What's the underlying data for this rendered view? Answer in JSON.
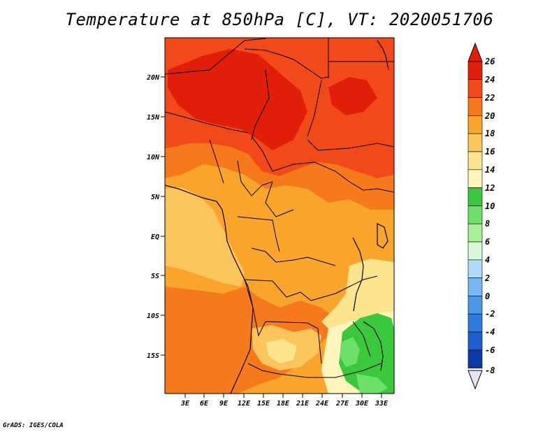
{
  "title": "Temperature at 850hPa [C], VT: 2020051706",
  "credit": "GrADS: IGES/COLA",
  "colors": {
    "c26": "#e01e0a",
    "c24": "#f2491a",
    "c22": "#f6791c",
    "c20": "#f9a42a",
    "c18": "#fbc55c",
    "c16": "#fde48e",
    "c14": "#fff6bd",
    "c12": "#3cc83c",
    "c10": "#6ce06a",
    "c8": "#a8f098",
    "c6": "#d8f8d8",
    "c4": "#b0daf8",
    "c2": "#7ab6f0",
    "c0": "#4c96e6",
    "cm2": "#2e7ade",
    "cm4": "#1e5cd0",
    "cm6": "#0a3aa8",
    "cm8": "#0a1a70",
    "below": "#e8e2fa",
    "bg": "#ffffff"
  },
  "lat_ticks": [
    "20N",
    "15N",
    "10N",
    "5N",
    "EQ",
    "5S",
    "10S",
    "15S"
  ],
  "lon_ticks": [
    "3E",
    "6E",
    "9E",
    "12E",
    "15E",
    "18E",
    "21E",
    "24E",
    "27E",
    "30E",
    "33E"
  ],
  "colorbar_labels": [
    "26",
    "24",
    "22",
    "20",
    "18",
    "16",
    "14",
    "12",
    "10",
    "8",
    "6",
    "4",
    "2",
    "0",
    "-2",
    "-4",
    "-6",
    "-8"
  ]
}
